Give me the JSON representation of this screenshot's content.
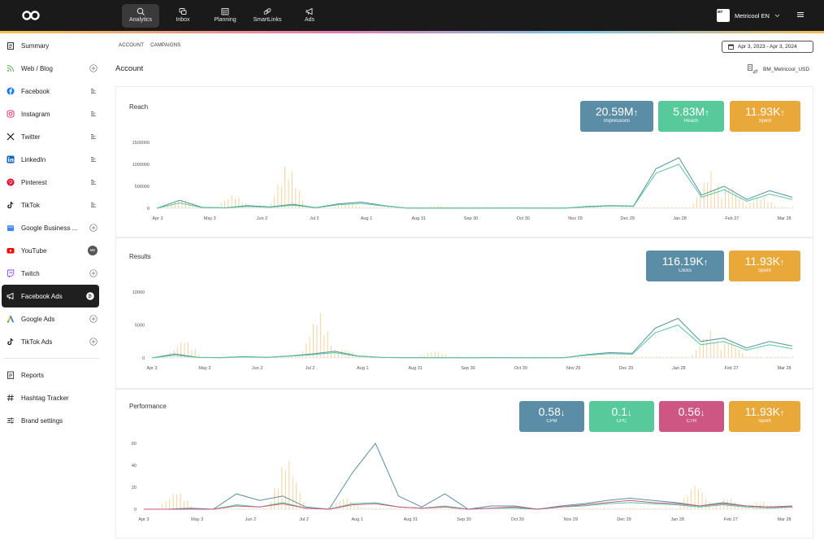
{
  "topbar": {
    "nav": [
      {
        "label": "Analytics",
        "icon": "analytics-icon",
        "active": true
      },
      {
        "label": "Inbox",
        "icon": "inbox-icon",
        "active": false
      },
      {
        "label": "Planning",
        "icon": "calendar-icon",
        "active": false
      },
      {
        "label": "SmartLinks",
        "icon": "link-icon",
        "active": false
      },
      {
        "label": "Ads",
        "icon": "megaphone-icon",
        "active": false
      }
    ],
    "brand_name": "Metricool EN",
    "brand_avatar_text": "ᴍᴛ"
  },
  "sidebar": {
    "items": [
      {
        "label": "Summary",
        "icon": "clipboard-icon",
        "action": ""
      },
      {
        "label": "Web / Blog",
        "icon": "rss-icon",
        "action": "add"
      },
      {
        "label": "Facebook",
        "icon": "facebook-icon",
        "action": "list"
      },
      {
        "label": "Instagram",
        "icon": "instagram-icon",
        "action": "list"
      },
      {
        "label": "Twitter",
        "icon": "x-icon",
        "action": "list"
      },
      {
        "label": "LinkedIn",
        "icon": "linkedin-icon",
        "action": "list"
      },
      {
        "label": "Pinterest",
        "icon": "pinterest-icon",
        "action": "list"
      },
      {
        "label": "TikTok",
        "icon": "tiktok-icon",
        "action": "list"
      },
      {
        "label": "Google Business ...",
        "icon": "google-business-icon",
        "action": "add"
      },
      {
        "label": "YouTube",
        "icon": "youtube-icon",
        "action": "avatar"
      },
      {
        "label": "Twitch",
        "icon": "twitch-icon",
        "action": "add"
      },
      {
        "label": "Facebook Ads",
        "icon": "megaphone-icon",
        "action": "list",
        "active": true
      },
      {
        "label": "Google Ads",
        "icon": "google-ads-icon",
        "action": "add"
      },
      {
        "label": "TikTok Ads",
        "icon": "tiktok-icon",
        "action": "add"
      }
    ],
    "bottom_items": [
      {
        "label": "Reports",
        "icon": "report-icon"
      },
      {
        "label": "Hashtag Tracker",
        "icon": "hashtag-icon"
      },
      {
        "label": "Brand settings",
        "icon": "sliders-icon"
      }
    ],
    "youtube_avatar_text": "ME"
  },
  "subnav": {
    "account": "ACCOUNT",
    "campaigns": "CAMPAIGNS"
  },
  "date_range": "Apr 3, 2023 - Apr 3, 2024",
  "page_title": "Account",
  "ad_account": "BM_Metricool_USD",
  "colors": {
    "blue": "#5b8ea6",
    "green": "#57c99a",
    "gold": "#e9a93a",
    "pink": "#cd5782"
  },
  "panels": {
    "reach": {
      "title": "Reach",
      "kpis": [
        {
          "value": "20.59M",
          "trend": "up",
          "label": "Impressions",
          "color": "blue"
        },
        {
          "value": "5.83M",
          "trend": "up",
          "label": "Reach",
          "color": "green"
        },
        {
          "value": "11.93K",
          "trend": "up",
          "label": "Spent",
          "color": "gold"
        }
      ]
    },
    "results": {
      "title": "Results",
      "kpis": [
        {
          "value": "116.19K",
          "trend": "up",
          "label": "Clicks",
          "color": "blue"
        },
        {
          "value": "11.93K",
          "trend": "up",
          "label": "Spent",
          "color": "gold"
        }
      ]
    },
    "performance": {
      "title": "Performance",
      "kpis": [
        {
          "value": "0.58",
          "trend": "down",
          "label": "CPM",
          "color": "blue"
        },
        {
          "value": "0.1",
          "trend": "down",
          "label": "CPC",
          "color": "green"
        },
        {
          "value": "0.56",
          "trend": "down",
          "label": "CTR",
          "color": "pink"
        },
        {
          "value": "11.93K",
          "trend": "up",
          "label": "Spent",
          "color": "gold"
        }
      ]
    }
  },
  "chart_data": [
    {
      "type": "line",
      "name": "reach",
      "x_ticks": [
        "Apr 3",
        "May 3",
        "Jun 2",
        "Jul 2",
        "Aug 1",
        "Aug 31",
        "Sep 30",
        "Oct 30",
        "Nov 29",
        "Dec 29",
        "Jan 28",
        "Feb 27",
        "Mar 28"
      ],
      "y_ticks": [
        0,
        500000,
        1000000,
        1500000
      ],
      "ylim": [
        0,
        1500000
      ],
      "series": [
        {
          "color": "blue",
          "values": [
            0,
            180000,
            20000,
            10000,
            60000,
            30000,
            90000,
            15000,
            100000,
            140000,
            60000,
            5000,
            3000,
            3000,
            3000,
            5000,
            4000,
            3000,
            3000,
            40000,
            60000,
            50000,
            900000,
            1150000,
            300000,
            500000,
            200000,
            400000,
            250000
          ]
        },
        {
          "color": "green",
          "values": [
            0,
            120000,
            15000,
            8000,
            40000,
            20000,
            70000,
            10000,
            80000,
            110000,
            50000,
            4000,
            2500,
            2500,
            2500,
            4000,
            3000,
            2500,
            2500,
            30000,
            50000,
            40000,
            800000,
            1000000,
            250000,
            420000,
            160000,
            320000,
            200000
          ]
        }
      ],
      "bars": {
        "color": "gold",
        "peaks": [
          [
            0.04,
            250000
          ],
          [
            0.12,
            350000
          ],
          [
            0.205,
            1100000
          ],
          [
            0.3,
            120000
          ],
          [
            0.44,
            70000
          ],
          [
            0.87,
            900000
          ],
          [
            0.9,
            600000
          ],
          [
            0.95,
            300000
          ]
        ]
      }
    },
    {
      "type": "line",
      "name": "results",
      "x_ticks": [
        "Apr 3",
        "May 3",
        "Jun 2",
        "Jul 2",
        "Aug 1",
        "Aug 31",
        "Sep 30",
        "Oct 30",
        "Nov 29",
        "Dec 29",
        "Jan 28",
        "Feb 27",
        "Mar 28"
      ],
      "y_ticks": [
        0,
        5000,
        10000
      ],
      "ylim": [
        0,
        10000
      ],
      "series": [
        {
          "color": "blue",
          "values": [
            0,
            600,
            100,
            50,
            200,
            100,
            300,
            600,
            1000,
            300,
            100,
            50,
            30,
            30,
            30,
            50,
            40,
            30,
            30,
            500,
            800,
            700,
            4500,
            6000,
            2500,
            3000,
            1500,
            2500,
            1800
          ]
        },
        {
          "color": "green",
          "values": [
            0,
            400,
            80,
            40,
            150,
            80,
            250,
            500,
            800,
            250,
            80,
            40,
            25,
            25,
            25,
            40,
            30,
            25,
            25,
            400,
            650,
            550,
            3800,
            5000,
            2000,
            2500,
            1200,
            2000,
            1400
          ]
        }
      ],
      "bars": {
        "color": "gold",
        "peaks": [
          [
            0.05,
            3000
          ],
          [
            0.26,
            7500
          ],
          [
            0.3,
            1500
          ],
          [
            0.44,
            1200
          ],
          [
            0.87,
            4500
          ],
          [
            0.9,
            3000
          ]
        ]
      }
    },
    {
      "type": "line",
      "name": "performance",
      "x_ticks": [
        "Apr 3",
        "May 3",
        "Jun 2",
        "Jul 2",
        "Aug 1",
        "Aug 31",
        "Sep 30",
        "Oct 30",
        "Nov 29",
        "Dec 29",
        "Jan 28",
        "Feb 27",
        "Mar 28"
      ],
      "y_ticks": [
        0,
        20,
        40,
        60
      ],
      "ylim": [
        0,
        60
      ],
      "series": [
        {
          "color": "blue",
          "values": [
            0,
            0,
            1,
            0,
            14,
            8,
            12,
            2,
            0,
            33,
            60,
            12,
            2,
            14,
            0,
            3,
            3,
            0,
            3,
            5,
            8,
            10,
            8,
            6,
            3,
            6,
            3,
            2,
            3
          ]
        },
        {
          "color": "green",
          "values": [
            0,
            0,
            0,
            0,
            4,
            2,
            6,
            1,
            0,
            5,
            6,
            2,
            1,
            3,
            0,
            1,
            1,
            0,
            2,
            3,
            5,
            6,
            5,
            4,
            2,
            4,
            2,
            1,
            2
          ]
        },
        {
          "color": "pink",
          "values": [
            0,
            0,
            0,
            0,
            3,
            2,
            5,
            1,
            0,
            4,
            5,
            2,
            1,
            2,
            0,
            1,
            2,
            0,
            2,
            4,
            6,
            8,
            6,
            5,
            3,
            5,
            3,
            2,
            2
          ]
        }
      ],
      "bars": {
        "color": "gold",
        "peaks": [
          [
            0.05,
            18
          ],
          [
            0.22,
            52
          ],
          [
            0.31,
            12
          ],
          [
            0.85,
            25
          ],
          [
            0.9,
            12
          ],
          [
            0.95,
            8
          ]
        ]
      }
    }
  ]
}
